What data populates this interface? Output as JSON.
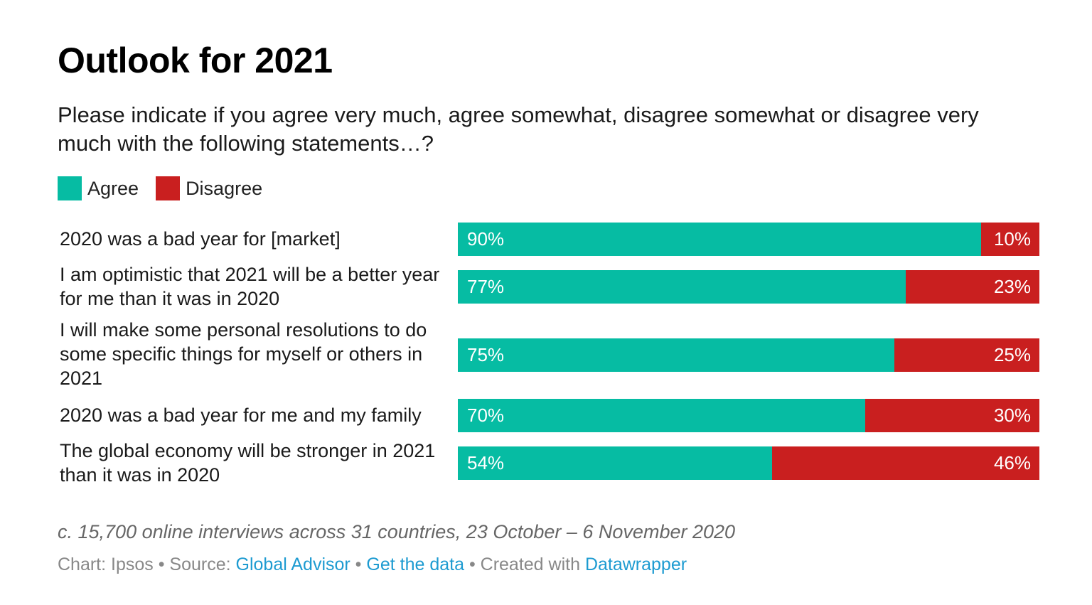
{
  "chart_data": {
    "type": "bar",
    "stacked": true,
    "orientation": "horizontal",
    "title": "Outlook for 2021",
    "subtitle": "Please indicate if you agree very much, agree somewhat, disagree somewhat or disagree very much with the following statements…?",
    "legend_position": "top-left",
    "categories": [
      "2020 was a bad year for [market]",
      "I am optimistic that 2021 will be a better year for me than it was in 2020",
      "I will make some personal resolutions to do some specific things for myself or others in 2021",
      "2020 was a bad year for me and my family",
      "The global economy will be stronger in 2021 than it was in 2020"
    ],
    "series": [
      {
        "name": "Agree",
        "color": "#06bca3",
        "values": [
          90,
          77,
          75,
          70,
          54
        ],
        "labels": [
          "90%",
          "77%",
          "75%",
          "70%",
          "54%"
        ]
      },
      {
        "name": "Disagree",
        "color": "#c91f1f",
        "values": [
          10,
          23,
          25,
          30,
          46
        ],
        "labels": [
          "10%",
          "23%",
          "25%",
          "30%",
          "46%"
        ]
      }
    ],
    "xlim": [
      0,
      100
    ],
    "grid": false
  },
  "footer": {
    "note": "c. 15,700 online interviews across 31 countries, 23 October – 6 November 2020",
    "chart_prefix": "Chart: Ipsos • Source: ",
    "source_link": "Global Advisor",
    "sep1": " • ",
    "data_link": "Get the data",
    "sep2": " • Created with ",
    "tool_link": "Datawrapper"
  }
}
